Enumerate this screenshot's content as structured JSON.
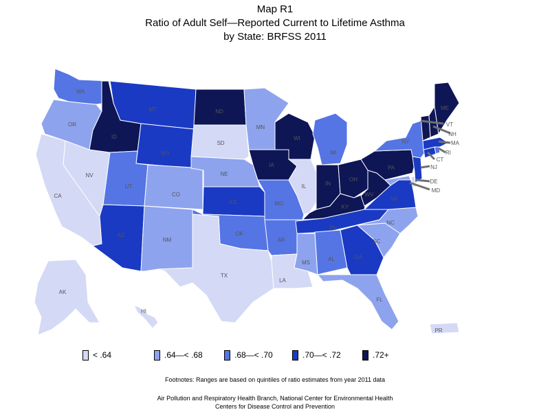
{
  "title": {
    "line1": "Map R1",
    "line2": "Ratio of Adult Self—Reported Current to Lifetime Asthma",
    "line3": "by State: BRFSS 2011"
  },
  "colors": {
    "q1": "#d4d9f6",
    "q2": "#8ea3ee",
    "q3": "#5575e4",
    "q4": "#1a3ac4",
    "q5": "#0e1656",
    "border": "#ffffff",
    "leader": "#707070"
  },
  "legend": [
    {
      "key": "q1",
      "label": "< .64"
    },
    {
      "key": "q2",
      "label": ".64—< .68"
    },
    {
      "key": "q3",
      "label": ".68—< .70"
    },
    {
      "key": "q4",
      "label": ".70—< .72"
    },
    {
      "key": "q5",
      "label": ".72+"
    }
  ],
  "states": [
    {
      "abbr": "WA",
      "q": "q3"
    },
    {
      "abbr": "OR",
      "q": "q2"
    },
    {
      "abbr": "CA",
      "q": "q1"
    },
    {
      "abbr": "NV",
      "q": "q1"
    },
    {
      "abbr": "ID",
      "q": "q5"
    },
    {
      "abbr": "MT",
      "q": "q4"
    },
    {
      "abbr": "WY",
      "q": "q4"
    },
    {
      "abbr": "UT",
      "q": "q3"
    },
    {
      "abbr": "AZ",
      "q": "q4"
    },
    {
      "abbr": "CO",
      "q": "q2"
    },
    {
      "abbr": "NM",
      "q": "q2"
    },
    {
      "abbr": "ND",
      "q": "q5"
    },
    {
      "abbr": "SD",
      "q": "q1"
    },
    {
      "abbr": "NE",
      "q": "q2"
    },
    {
      "abbr": "KS",
      "q": "q4"
    },
    {
      "abbr": "OK",
      "q": "q3"
    },
    {
      "abbr": "TX",
      "q": "q1"
    },
    {
      "abbr": "MN",
      "q": "q2"
    },
    {
      "abbr": "IA",
      "q": "q5"
    },
    {
      "abbr": "MO",
      "q": "q3"
    },
    {
      "abbr": "AR",
      "q": "q3"
    },
    {
      "abbr": "LA",
      "q": "q1"
    },
    {
      "abbr": "WI",
      "q": "q5"
    },
    {
      "abbr": "IL",
      "q": "q1"
    },
    {
      "abbr": "MI",
      "q": "q3"
    },
    {
      "abbr": "IN",
      "q": "q5"
    },
    {
      "abbr": "OH",
      "q": "q5"
    },
    {
      "abbr": "KY",
      "q": "q5"
    },
    {
      "abbr": "TN",
      "q": "q4"
    },
    {
      "abbr": "MS",
      "q": "q2"
    },
    {
      "abbr": "AL",
      "q": "q3"
    },
    {
      "abbr": "GA",
      "q": "q4"
    },
    {
      "abbr": "FL",
      "q": "q2"
    },
    {
      "abbr": "SC",
      "q": "q2"
    },
    {
      "abbr": "NC",
      "q": "q2"
    },
    {
      "abbr": "VA",
      "q": "q4"
    },
    {
      "abbr": "WV",
      "q": "q5"
    },
    {
      "abbr": "PA",
      "q": "q5"
    },
    {
      "abbr": "NY",
      "q": "q3"
    },
    {
      "abbr": "NJ",
      "q": "q4"
    },
    {
      "abbr": "DE",
      "q": "q1"
    },
    {
      "abbr": "MD",
      "q": "q2"
    },
    {
      "abbr": "CT",
      "q": "q4"
    },
    {
      "abbr": "RI",
      "q": "q3"
    },
    {
      "abbr": "MA",
      "q": "q4"
    },
    {
      "abbr": "VT",
      "q": "q5"
    },
    {
      "abbr": "NH",
      "q": "q5"
    },
    {
      "abbr": "ME",
      "q": "q5"
    },
    {
      "abbr": "AK",
      "q": "q1"
    },
    {
      "abbr": "HI",
      "q": "q1"
    },
    {
      "abbr": "PR",
      "q": "q1"
    }
  ],
  "footnote": "Footnotes: Ranges are based on quintiles of ratio estimates from year 2011 data",
  "source": {
    "line1": "Air Pollution and Respiratory Health Branch, National Center for Environmental Health",
    "line2": "Centers for Disease Control and Prevention"
  }
}
